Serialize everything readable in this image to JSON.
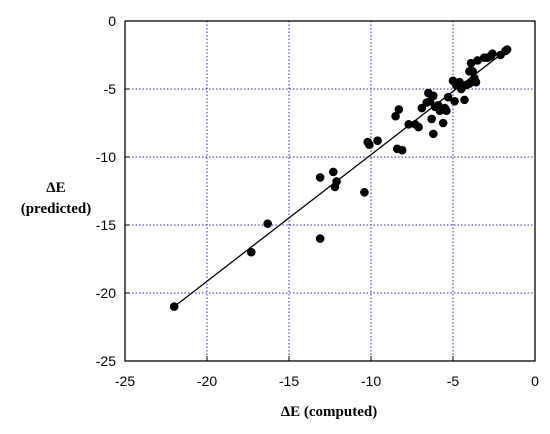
{
  "chart_data": {
    "type": "scatter",
    "xlabel": "ΔE (computed)",
    "ylabel_line1": "ΔE",
    "ylabel_line2": "(predicted)",
    "xlim": [
      -25,
      0
    ],
    "ylim": [
      -25,
      0
    ],
    "x_ticks": [
      -25,
      -20,
      -15,
      -10,
      -5,
      0
    ],
    "y_ticks": [
      0,
      -5,
      -10,
      -15,
      -20,
      -25
    ],
    "grid": true,
    "legend": "none",
    "series": [
      {
        "points": [
          [
            -22.0,
            -21.0
          ],
          [
            -17.3,
            -17.0
          ],
          [
            -16.3,
            -14.9
          ],
          [
            -13.1,
            -16.0
          ],
          [
            -13.1,
            -11.5
          ],
          [
            -12.3,
            -11.1
          ],
          [
            -12.2,
            -12.2
          ],
          [
            -12.1,
            -11.8
          ],
          [
            -10.4,
            -12.6
          ],
          [
            -10.2,
            -8.9
          ],
          [
            -10.1,
            -9.1
          ],
          [
            -9.6,
            -8.8
          ],
          [
            -8.5,
            -7.0
          ],
          [
            -8.4,
            -9.4
          ],
          [
            -8.3,
            -6.5
          ],
          [
            -8.1,
            -9.5
          ],
          [
            -7.7,
            -7.6
          ],
          [
            -7.3,
            -7.6
          ],
          [
            -7.1,
            -7.8
          ],
          [
            -6.9,
            -6.4
          ],
          [
            -6.6,
            -6.0
          ],
          [
            -6.5,
            -5.3
          ],
          [
            -6.4,
            -5.9
          ],
          [
            -6.3,
            -7.2
          ],
          [
            -6.2,
            -8.3
          ],
          [
            -6.2,
            -5.5
          ],
          [
            -6.1,
            -6.3
          ],
          [
            -5.9,
            -6.2
          ],
          [
            -5.8,
            -6.6
          ],
          [
            -5.6,
            -7.5
          ],
          [
            -5.5,
            -6.4
          ],
          [
            -5.4,
            -6.6
          ],
          [
            -5.3,
            -5.6
          ],
          [
            -5.0,
            -4.4
          ],
          [
            -4.9,
            -5.9
          ],
          [
            -4.8,
            -4.7
          ],
          [
            -4.7,
            -4.6
          ],
          [
            -4.6,
            -4.5
          ],
          [
            -4.5,
            -5.0
          ],
          [
            -4.3,
            -5.8
          ],
          [
            -4.2,
            -4.7
          ],
          [
            -4.0,
            -4.6
          ],
          [
            -4.0,
            -3.7
          ],
          [
            -3.9,
            -3.1
          ],
          [
            -3.8,
            -3.7
          ],
          [
            -3.7,
            -4.2
          ],
          [
            -3.6,
            -4.5
          ],
          [
            -3.5,
            -2.9
          ],
          [
            -3.1,
            -2.7
          ],
          [
            -2.9,
            -2.7
          ],
          [
            -2.7,
            -2.6
          ],
          [
            -2.6,
            -2.4
          ],
          [
            -2.1,
            -2.5
          ],
          [
            -1.8,
            -2.2
          ],
          [
            -1.7,
            -2.1
          ]
        ]
      }
    ],
    "fit_line": {
      "from": [
        -22.0,
        -21.0
      ],
      "to": [
        -1.7,
        -2.1
      ]
    }
  }
}
